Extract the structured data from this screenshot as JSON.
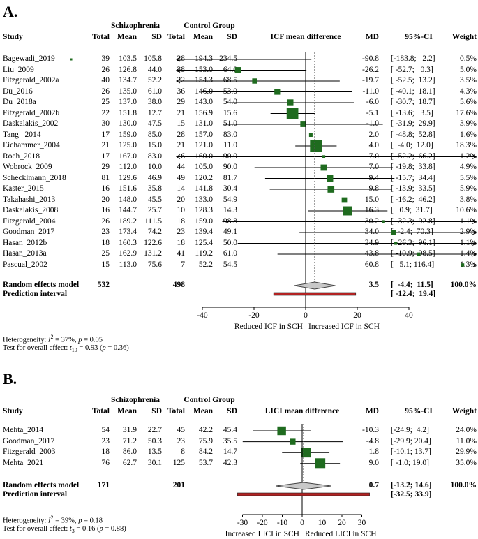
{
  "panels": [
    {
      "label": "A.",
      "group1_header": "Schizophrenia",
      "group2_header": "Control Group",
      "col_study": "Study",
      "col_total": "Total",
      "col_mean": "Mean",
      "col_sd": "SD",
      "col_plot": "ICF mean difference",
      "col_md": "MD",
      "col_ci": "95%-CI",
      "col_weight": "Weight",
      "studies": [
        {
          "study": "Bagewadi_2019",
          "t1": "39",
          "m1": "103.5",
          "s1": "105.8",
          "t2": "28",
          "m2": "194.3",
          "s2": "234.5",
          "md": "-90.8",
          "ci": "[-183.8;   2.2]",
          "weight": "0.5%",
          "md_val": -90.8,
          "lo": -183.8,
          "hi": 2.2,
          "w": 0.5
        },
        {
          "study": "Liu_2009",
          "t1": "26",
          "m1": "126.8",
          "s1": "44.0",
          "t2": "38",
          "m2": "153.0",
          "s2": "64.0",
          "md": "-26.2",
          "ci": "[ -52.7;   0.3]",
          "weight": "5.0%",
          "md_val": -26.2,
          "lo": -52.7,
          "hi": 0.3,
          "w": 5.0
        },
        {
          "study": "Fitzgerald_2002a",
          "t1": "40",
          "m1": "134.7",
          "s1": "52.2",
          "t2": "22",
          "m2": "154.3",
          "s2": "68.5",
          "md": "-19.7",
          "ci": "[ -52.5;  13.2]",
          "weight": "3.5%",
          "md_val": -19.7,
          "lo": -52.5,
          "hi": 13.2,
          "w": 3.5
        },
        {
          "study": "Du_2016",
          "t1": "26",
          "m1": "135.0",
          "s1": "61.0",
          "t2": "36",
          "m2": "146.0",
          "s2": "53.0",
          "md": "-11.0",
          "ci": "[ -40.1;  18.1]",
          "weight": "4.3%",
          "md_val": -11.0,
          "lo": -40.1,
          "hi": 18.1,
          "w": 4.3
        },
        {
          "study": "Du_2018a",
          "t1": "25",
          "m1": "137.0",
          "s1": "38.0",
          "t2": "29",
          "m2": "143.0",
          "s2": "54.0",
          "md": "-6.0",
          "ci": "[ -30.7;  18.7]",
          "weight": "5.6%",
          "md_val": -6.0,
          "lo": -30.7,
          "hi": 18.7,
          "w": 5.6
        },
        {
          "study": "Fitzgerald_2002b",
          "t1": "22",
          "m1": "151.8",
          "s1": "12.7",
          "t2": "21",
          "m2": "156.9",
          "s2": "15.6",
          "md": "-5.1",
          "ci": "[ -13.6;   3.5]",
          "weight": "17.6%",
          "md_val": -5.1,
          "lo": -13.6,
          "hi": 3.5,
          "w": 17.6
        },
        {
          "study": "Daskalakis_2002",
          "t1": "30",
          "m1": "130.0",
          "s1": "47.5",
          "t2": "15",
          "m2": "131.0",
          "s2": "51.0",
          "md": "-1.0",
          "ci": "[ -31.9;  29.9]",
          "weight": "3.9%",
          "md_val": -1.0,
          "lo": -31.9,
          "hi": 29.9,
          "w": 3.9
        },
        {
          "study": "Tang _2014",
          "t1": "17",
          "m1": "159.0",
          "s1": "85.0",
          "t2": "28",
          "m2": "157.0",
          "s2": "83.0",
          "md": "2.0",
          "ci": "[ -48.8;  52.8]",
          "weight": "1.6%",
          "md_val": 2.0,
          "lo": -48.8,
          "hi": 52.8,
          "w": 1.6
        },
        {
          "study": "Eichammer_2004",
          "t1": "21",
          "m1": "125.0",
          "s1": "15.0",
          "t2": "21",
          "m2": "121.0",
          "s2": "11.0",
          "md": "4.0",
          "ci": "[  -4.0;  12.0]",
          "weight": "18.3%",
          "md_val": 4.0,
          "lo": -4.0,
          "hi": 12.0,
          "w": 18.3
        },
        {
          "study": "Roeh_2018",
          "t1": "17",
          "m1": "167.0",
          "s1": "83.0",
          "t2": "16",
          "m2": "160.0",
          "s2": "90.0",
          "md": "7.0",
          "ci": "[ -52.2;  66.2]",
          "weight": "1.2%",
          "md_val": 7.0,
          "lo": -52.2,
          "hi": 66.2,
          "w": 1.2
        },
        {
          "study": "Wobrock_2009",
          "t1": "29",
          "m1": "112.0",
          "s1": "10.0",
          "t2": "44",
          "m2": "105.0",
          "s2": "90.0",
          "md": "7.0",
          "ci": "[ -19.8;  33.8]",
          "weight": "4.9%",
          "md_val": 7.0,
          "lo": -19.8,
          "hi": 33.8,
          "w": 4.9
        },
        {
          "study": "Schecklmann_2018",
          "t1": "81",
          "m1": "129.6",
          "s1": "46.9",
          "t2": "49",
          "m2": "120.2",
          "s2": "81.7",
          "md": "9.4",
          "ci": "[ -15.7;  34.4]",
          "weight": "5.5%",
          "md_val": 9.4,
          "lo": -15.7,
          "hi": 34.4,
          "w": 5.5
        },
        {
          "study": "Kaster_2015",
          "t1": "16",
          "m1": "151.6",
          "s1": "35.8",
          "t2": "14",
          "m2": "141.8",
          "s2": "30.4",
          "md": "9.8",
          "ci": "[ -13.9;  33.5]",
          "weight": "5.9%",
          "md_val": 9.8,
          "lo": -13.9,
          "hi": 33.5,
          "w": 5.9
        },
        {
          "study": "Takahashi_2013",
          "t1": "20",
          "m1": "148.0",
          "s1": "45.5",
          "t2": "20",
          "m2": "133.0",
          "s2": "54.9",
          "md": "15.0",
          "ci": "[ -16.2;  46.2]",
          "weight": "3.8%",
          "md_val": 15.0,
          "lo": -16.2,
          "hi": 46.2,
          "w": 3.8
        },
        {
          "study": "Daskalakis_2008",
          "t1": "16",
          "m1": "144.7",
          "s1": "25.7",
          "t2": "10",
          "m2": "128.3",
          "s2": "14.3",
          "md": "16.3",
          "ci": "[   0.9;  31.7]",
          "weight": "10.6%",
          "md_val": 16.3,
          "lo": 0.9,
          "hi": 31.7,
          "w": 10.6
        },
        {
          "study": "Fitzgerald_2004",
          "t1": "26",
          "m1": "189.2",
          "s1": "111.5",
          "t2": "18",
          "m2": "159.0",
          "s2": "98.8",
          "md": "30.2",
          "ci": "[ -32.3;  92.8]",
          "weight": "1.1%",
          "md_val": 30.2,
          "lo": -32.3,
          "hi": 92.8,
          "w": 1.1
        },
        {
          "study": "Goodman_2017",
          "t1": "23",
          "m1": "173.4",
          "s1": "74.2",
          "t2": "23",
          "m2": "139.4",
          "s2": "49.1",
          "md": "34.0",
          "ci": "[  -2.4;  70.3]",
          "weight": "2.9%",
          "md_val": 34.0,
          "lo": -2.4,
          "hi": 70.3,
          "w": 2.9
        },
        {
          "study": "Hasan_2012b",
          "t1": "18",
          "m1": "160.3",
          "s1": "122.6",
          "t2": "18",
          "m2": "125.4",
          "s2": "50.0",
          "md": "34.9",
          "ci": "[ -26.3;  96.1]",
          "weight": "1.1%",
          "md_val": 34.9,
          "lo": -26.3,
          "hi": 96.1,
          "w": 1.1
        },
        {
          "study": "Hasan_2013a",
          "t1": "25",
          "m1": "162.9",
          "s1": "131.2",
          "t2": "41",
          "m2": "119.2",
          "s2": "61.0",
          "md": "43.8",
          "ci": "[ -10.9;  98.5]",
          "weight": "1.4%",
          "md_val": 43.8,
          "lo": -10.9,
          "hi": 98.5,
          "w": 1.4
        },
        {
          "study": "Pascual_2002",
          "t1": "15",
          "m1": "113.0",
          "s1": "75.6",
          "t2": "7",
          "m2": "52.2",
          "s2": "54.5",
          "md": "60.8",
          "ci": "[   5.1; 116.4]",
          "weight": "1.3%",
          "md_val": 60.8,
          "lo": 5.1,
          "hi": 116.4,
          "w": 1.3
        }
      ],
      "random_label": "Random effects model",
      "random_t1": "532",
      "random_t2": "498",
      "random_md": "3.5",
      "random_ci": "[  -4.4;  11.5]",
      "random_weight": "100.0%",
      "random_md_val": 3.5,
      "random_lo": -4.4,
      "random_hi": 11.5,
      "pi_label": "Prediction interval",
      "pi_ci": "[ -12.4;  19.4]",
      "pi_lo": -12.4,
      "pi_hi": 19.4,
      "het_prefix": "Heterogeneity: ",
      "het_i2": "I",
      "het_sup": "2",
      "het_rest": " = 37%, ",
      "het_p": "p",
      "het_pval": " = 0.05",
      "test_prefix": "Test for overall effect: ",
      "test_t": "t",
      "test_sub": "19",
      "test_rest": " = 0.93 (",
      "test_p": "p",
      "test_pval": " = 0.36)",
      "left_caption": "Reduced ICF in SCH",
      "right_caption": "Increased ICF in SCH",
      "ticks": [
        "-40",
        "-20",
        "0",
        "20",
        "40"
      ]
    },
    {
      "label": "B.",
      "group1_header": "Schizophrenia",
      "group2_header": "Control Group",
      "col_study": "Study",
      "col_total": "Total",
      "col_mean": "Mean",
      "col_sd": "SD",
      "col_plot": "LICI mean difference",
      "col_md": "MD",
      "col_ci": "95%-CI",
      "col_weight": "Weight",
      "studies": [
        {
          "study": "Mehta_2014",
          "t1": "54",
          "m1": "31.9",
          "s1": "22.7",
          "t2": "45",
          "m2": "42.2",
          "s2": "45.4",
          "md": "-10.3",
          "ci": "[-24.9;  4.2]",
          "weight": "24.0%",
          "md_val": -10.3,
          "lo": -24.9,
          "hi": 4.2,
          "w": 24.0
        },
        {
          "study": "Goodman_2017",
          "t1": "23",
          "m1": "71.2",
          "s1": "50.3",
          "t2": "23",
          "m2": "75.9",
          "s2": "35.5",
          "md": "-4.8",
          "ci": "[-29.9; 20.4]",
          "weight": "11.0%",
          "md_val": -4.8,
          "lo": -29.9,
          "hi": 20.4,
          "w": 11.0
        },
        {
          "study": "Fitzgerald_2003",
          "t1": "18",
          "m1": "86.0",
          "s1": "13.5",
          "t2": "8",
          "m2": "84.2",
          "s2": "14.7",
          "md": "1.8",
          "ci": "[-10.1; 13.7]",
          "weight": "29.9%",
          "md_val": 1.8,
          "lo": -10.1,
          "hi": 13.7,
          "w": 29.9
        },
        {
          "study": "Mehta_2021",
          "t1": "76",
          "m1": "62.7",
          "s1": "30.1",
          "t2": "125",
          "m2": "53.7",
          "s2": "42.3",
          "md": "9.0",
          "ci": "[ -1.0; 19.0]",
          "weight": "35.0%",
          "md_val": 9.0,
          "lo": -1.0,
          "hi": 19.0,
          "w": 35.0
        }
      ],
      "random_label": "Random effects model",
      "random_t1": "171",
      "random_t2": "201",
      "random_md": "0.7",
      "random_ci": "[-13.2; 14.6]",
      "random_weight": "100.0%",
      "random_md_val": 0.7,
      "random_lo": -13.2,
      "random_hi": 14.6,
      "pi_label": "Prediction interval",
      "pi_ci": "[-32.5; 33.9]",
      "pi_lo": -32.5,
      "pi_hi": 33.9,
      "het_prefix": "Heterogeneity: ",
      "het_i2": "I",
      "het_sup": "2",
      "het_rest": " = 39%, ",
      "het_p": "p",
      "het_pval": " = 0.18",
      "test_prefix": "Test for overall effect: ",
      "test_t": "t",
      "test_sub": "3",
      "test_rest": " = 0.16 (",
      "test_p": "p",
      "test_pval": " = 0.88)",
      "left_caption": "Increased LICI in SCH",
      "right_caption": "Reduced LICI in SCH",
      "ticks": [
        "-30",
        "-20",
        "-10",
        "0",
        "10",
        "20",
        "30"
      ]
    }
  ],
  "chart_data": [
    {
      "type": "forest",
      "title": "ICF mean difference",
      "xlabel_left": "Reduced ICF in SCH",
      "xlabel_right": "Increased ICF in SCH",
      "xlim": [
        -40,
        40
      ],
      "studies": [
        "Bagewadi_2019",
        "Liu_2009",
        "Fitzgerald_2002a",
        "Du_2016",
        "Du_2018a",
        "Fitzgerald_2002b",
        "Daskalakis_2002",
        "Tang _2014",
        "Eichammer_2004",
        "Roeh_2018",
        "Wobrock_2009",
        "Schecklmann_2018",
        "Kaster_2015",
        "Takahashi_2013",
        "Daskalakis_2008",
        "Fitzgerald_2004",
        "Goodman_2017",
        "Hasan_2012b",
        "Hasan_2013a",
        "Pascual_2002"
      ],
      "md": [
        -90.8,
        -26.2,
        -19.7,
        -11.0,
        -6.0,
        -5.1,
        -1.0,
        2.0,
        4.0,
        7.0,
        7.0,
        9.4,
        9.8,
        15.0,
        16.3,
        30.2,
        34.0,
        34.9,
        43.8,
        60.8
      ],
      "pooled": {
        "md": 3.5,
        "ci": [
          -4.4,
          11.5
        ],
        "prediction_interval": [
          -12.4,
          19.4
        ]
      }
    },
    {
      "type": "forest",
      "title": "LICI mean difference",
      "xlabel_left": "Increased LICI in SCH",
      "xlabel_right": "Reduced LICI in SCH",
      "xlim": [
        -30,
        30
      ],
      "studies": [
        "Mehta_2014",
        "Goodman_2017",
        "Fitzgerald_2003",
        "Mehta_2021"
      ],
      "md": [
        -10.3,
        -4.8,
        1.8,
        9.0
      ],
      "pooled": {
        "md": 0.7,
        "ci": [
          -13.2,
          14.6
        ],
        "prediction_interval": [
          -32.5,
          33.9
        ]
      }
    }
  ]
}
